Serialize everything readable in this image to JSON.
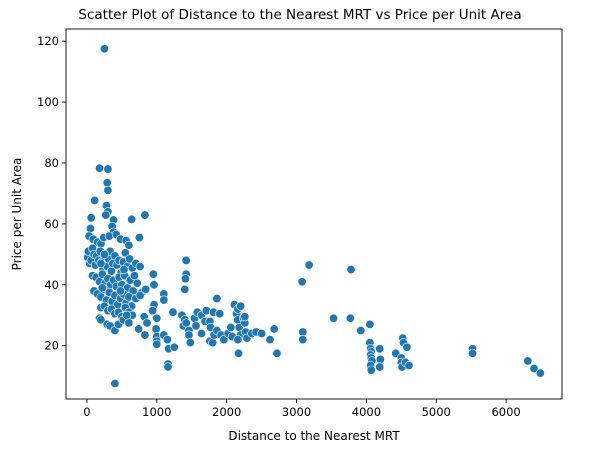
{
  "chart_data": {
    "type": "scatter",
    "title": "Scatter Plot of Distance to the Nearest MRT vs Price per Unit Area",
    "xlabel": "Distance to the Nearest MRT",
    "ylabel": "Price per Unit Area",
    "xlim": [
      -300,
      6800
    ],
    "ylim": [
      2.5,
      124
    ],
    "x_ticks": [
      0,
      1000,
      2000,
      3000,
      4000,
      5000,
      6000
    ],
    "y_ticks": [
      20,
      40,
      60,
      80,
      100,
      120
    ],
    "grid": false,
    "legend": "none",
    "colors": {
      "marker": "#1f77b4",
      "marker_edge": "#ffffff",
      "axis": "#000000"
    },
    "series": [
      {
        "points": [
          [
            250,
            117.5
          ],
          [
            400,
            7.6
          ],
          [
            180,
            78.3
          ],
          [
            300,
            78.0
          ],
          [
            290,
            73.5
          ],
          [
            300,
            71.0
          ],
          [
            280,
            66.0
          ],
          [
            300,
            64.0
          ],
          [
            270,
            62.9
          ],
          [
            110,
            67.7
          ],
          [
            830,
            62.9
          ],
          [
            640,
            61.5
          ],
          [
            380,
            61.3
          ],
          [
            360,
            59.2
          ],
          [
            380,
            57.3
          ],
          [
            60,
            62.0
          ],
          [
            50,
            58.5
          ],
          [
            30,
            56.0
          ],
          [
            90,
            55.0
          ],
          [
            150,
            54.0
          ],
          [
            200,
            53.5
          ],
          [
            240,
            55.5
          ],
          [
            320,
            56.0
          ],
          [
            420,
            56.5
          ],
          [
            480,
            55.0
          ],
          [
            560,
            54.5
          ],
          [
            600,
            53.0
          ],
          [
            750,
            55.5
          ],
          [
            10,
            49.0
          ],
          [
            20,
            51.0
          ],
          [
            40,
            47.0
          ],
          [
            60,
            48.0
          ],
          [
            80,
            52.0
          ],
          [
            100,
            50.0
          ],
          [
            120,
            46.5
          ],
          [
            140,
            49.5
          ],
          [
            170,
            48.0
          ],
          [
            190,
            51.0
          ],
          [
            210,
            47.5
          ],
          [
            230,
            45.0
          ],
          [
            260,
            49.0
          ],
          [
            290,
            46.0
          ],
          [
            310,
            48.5
          ],
          [
            330,
            51.0
          ],
          [
            350,
            44.5
          ],
          [
            370,
            47.0
          ],
          [
            400,
            49.5
          ],
          [
            430,
            46.5
          ],
          [
            460,
            48.0
          ],
          [
            490,
            44.0
          ],
          [
            520,
            47.5
          ],
          [
            550,
            50.5
          ],
          [
            580,
            46.0
          ],
          [
            610,
            48.5
          ],
          [
            650,
            45.5
          ],
          [
            700,
            47.0
          ],
          [
            760,
            46.0
          ],
          [
            80,
            43.0
          ],
          [
            130,
            42.5
          ],
          [
            180,
            41.0
          ],
          [
            220,
            43.5
          ],
          [
            260,
            40.5
          ],
          [
            300,
            42.0
          ],
          [
            340,
            40.0
          ],
          [
            380,
            41.5
          ],
          [
            420,
            39.5
          ],
          [
            460,
            42.5
          ],
          [
            500,
            40.0
          ],
          [
            540,
            43.0
          ],
          [
            580,
            39.0
          ],
          [
            620,
            41.5
          ],
          [
            660,
            38.0
          ],
          [
            720,
            40.5
          ],
          [
            790,
            37.5
          ],
          [
            840,
            38.5
          ],
          [
            100,
            38.0
          ],
          [
            150,
            37.0
          ],
          [
            200,
            36.0
          ],
          [
            250,
            38.5
          ],
          [
            280,
            35.0
          ],
          [
            320,
            37.5
          ],
          [
            360,
            34.5
          ],
          [
            400,
            36.5
          ],
          [
            440,
            33.5
          ],
          [
            480,
            35.5
          ],
          [
            520,
            37.0
          ],
          [
            560,
            34.0
          ],
          [
            600,
            36.0
          ],
          [
            640,
            33.0
          ],
          [
            700,
            35.5
          ],
          [
            760,
            36.5
          ],
          [
            200,
            32.5
          ],
          [
            250,
            33.0
          ],
          [
            300,
            31.5
          ],
          [
            350,
            32.0
          ],
          [
            400,
            30.5
          ],
          [
            450,
            31.0
          ],
          [
            500,
            29.5
          ],
          [
            550,
            32.5
          ],
          [
            600,
            31.0
          ],
          [
            650,
            30.0
          ],
          [
            180,
            29.0
          ],
          [
            200,
            28.5
          ],
          [
            290,
            27.0
          ],
          [
            330,
            26.5
          ],
          [
            400,
            25.0
          ],
          [
            450,
            27.0
          ],
          [
            520,
            28.5
          ],
          [
            570,
            30.0
          ],
          [
            600,
            27.5
          ],
          [
            200,
            47.0
          ],
          [
            250,
            50.0
          ],
          [
            220,
            39.0
          ],
          [
            480,
            38.0
          ],
          [
            530,
            45.0
          ],
          [
            680,
            43.0
          ],
          [
            950,
            43.5
          ],
          [
            960,
            40.0
          ],
          [
            1100,
            37.0
          ],
          [
            1100,
            35.0
          ],
          [
            960,
            33.5
          ],
          [
            940,
            31.5
          ],
          [
            1000,
            29.0
          ],
          [
            820,
            29.5
          ],
          [
            860,
            27.5
          ],
          [
            740,
            25.5
          ],
          [
            830,
            23.5
          ],
          [
            990,
            25.5
          ],
          [
            1000,
            23.0
          ],
          [
            1000,
            21.5
          ],
          [
            1000,
            20.5
          ],
          [
            1100,
            23.5
          ],
          [
            1150,
            22.0
          ],
          [
            1170,
            19.0
          ],
          [
            1160,
            14.0
          ],
          [
            1160,
            13.0
          ],
          [
            1250,
            19.5
          ],
          [
            1230,
            31.0
          ],
          [
            1420,
            48.0
          ],
          [
            1420,
            43.5
          ],
          [
            1410,
            42.0
          ],
          [
            1400,
            38.5
          ],
          [
            1360,
            30.0
          ],
          [
            1400,
            28.5
          ],
          [
            1380,
            26.5
          ],
          [
            1420,
            27.5
          ],
          [
            1460,
            25.0
          ],
          [
            1460,
            23.5
          ],
          [
            1480,
            21.0
          ],
          [
            1540,
            29.0
          ],
          [
            1560,
            26.5
          ],
          [
            1580,
            31.0
          ],
          [
            1640,
            30.0
          ],
          [
            1690,
            28.0
          ],
          [
            1640,
            24.0
          ],
          [
            1710,
            31.5
          ],
          [
            1760,
            28.0
          ],
          [
            1770,
            26.0
          ],
          [
            1760,
            21.5
          ],
          [
            1800,
            21.0
          ],
          [
            1820,
            23.5
          ],
          [
            1810,
            31.0
          ],
          [
            1860,
            35.5
          ],
          [
            1860,
            25.0
          ],
          [
            1900,
            30.5
          ],
          [
            1920,
            23.5
          ],
          [
            1960,
            22.0
          ],
          [
            2020,
            24.0
          ],
          [
            2060,
            26.0
          ],
          [
            2080,
            23.0
          ],
          [
            2110,
            33.5
          ],
          [
            2140,
            30.5
          ],
          [
            2160,
            32.0
          ],
          [
            2160,
            28.5
          ],
          [
            2180,
            26.0
          ],
          [
            2200,
            23.5
          ],
          [
            2160,
            22.0
          ],
          [
            2200,
            33.0
          ],
          [
            2240,
            29.0
          ],
          [
            2260,
            27.5
          ],
          [
            2270,
            24.5
          ],
          [
            2290,
            22.5
          ],
          [
            2260,
            29.5
          ],
          [
            2360,
            24.0
          ],
          [
            2420,
            24.5
          ],
          [
            2500,
            24.0
          ],
          [
            2620,
            22.0
          ],
          [
            2680,
            25.5
          ],
          [
            2720,
            17.5
          ],
          [
            2170,
            17.5
          ],
          [
            3080,
            41.0
          ],
          [
            3180,
            46.5
          ],
          [
            3090,
            24.5
          ],
          [
            3090,
            22.0
          ],
          [
            3530,
            29.0
          ],
          [
            3780,
            45.0
          ],
          [
            3770,
            29.0
          ],
          [
            3920,
            25.0
          ],
          [
            4050,
            27.0
          ],
          [
            4050,
            21.0
          ],
          [
            4060,
            19.0
          ],
          [
            4070,
            18.0
          ],
          [
            4060,
            17.0
          ],
          [
            4070,
            16.0
          ],
          [
            4080,
            15.0
          ],
          [
            4060,
            13.5
          ],
          [
            4070,
            12.0
          ],
          [
            4190,
            19.0
          ],
          [
            4200,
            15.5
          ],
          [
            4190,
            13.0
          ],
          [
            4420,
            17.5
          ],
          [
            4500,
            16.0
          ],
          [
            4500,
            14.5
          ],
          [
            4510,
            13.0
          ],
          [
            4520,
            22.5
          ],
          [
            4530,
            21.0
          ],
          [
            4560,
            14.5
          ],
          [
            4580,
            19.5
          ],
          [
            4610,
            13.5
          ],
          [
            5520,
            19.0
          ],
          [
            5520,
            17.5
          ],
          [
            6310,
            15.0
          ],
          [
            6400,
            12.5
          ],
          [
            6490,
            11.0
          ]
        ]
      }
    ]
  }
}
